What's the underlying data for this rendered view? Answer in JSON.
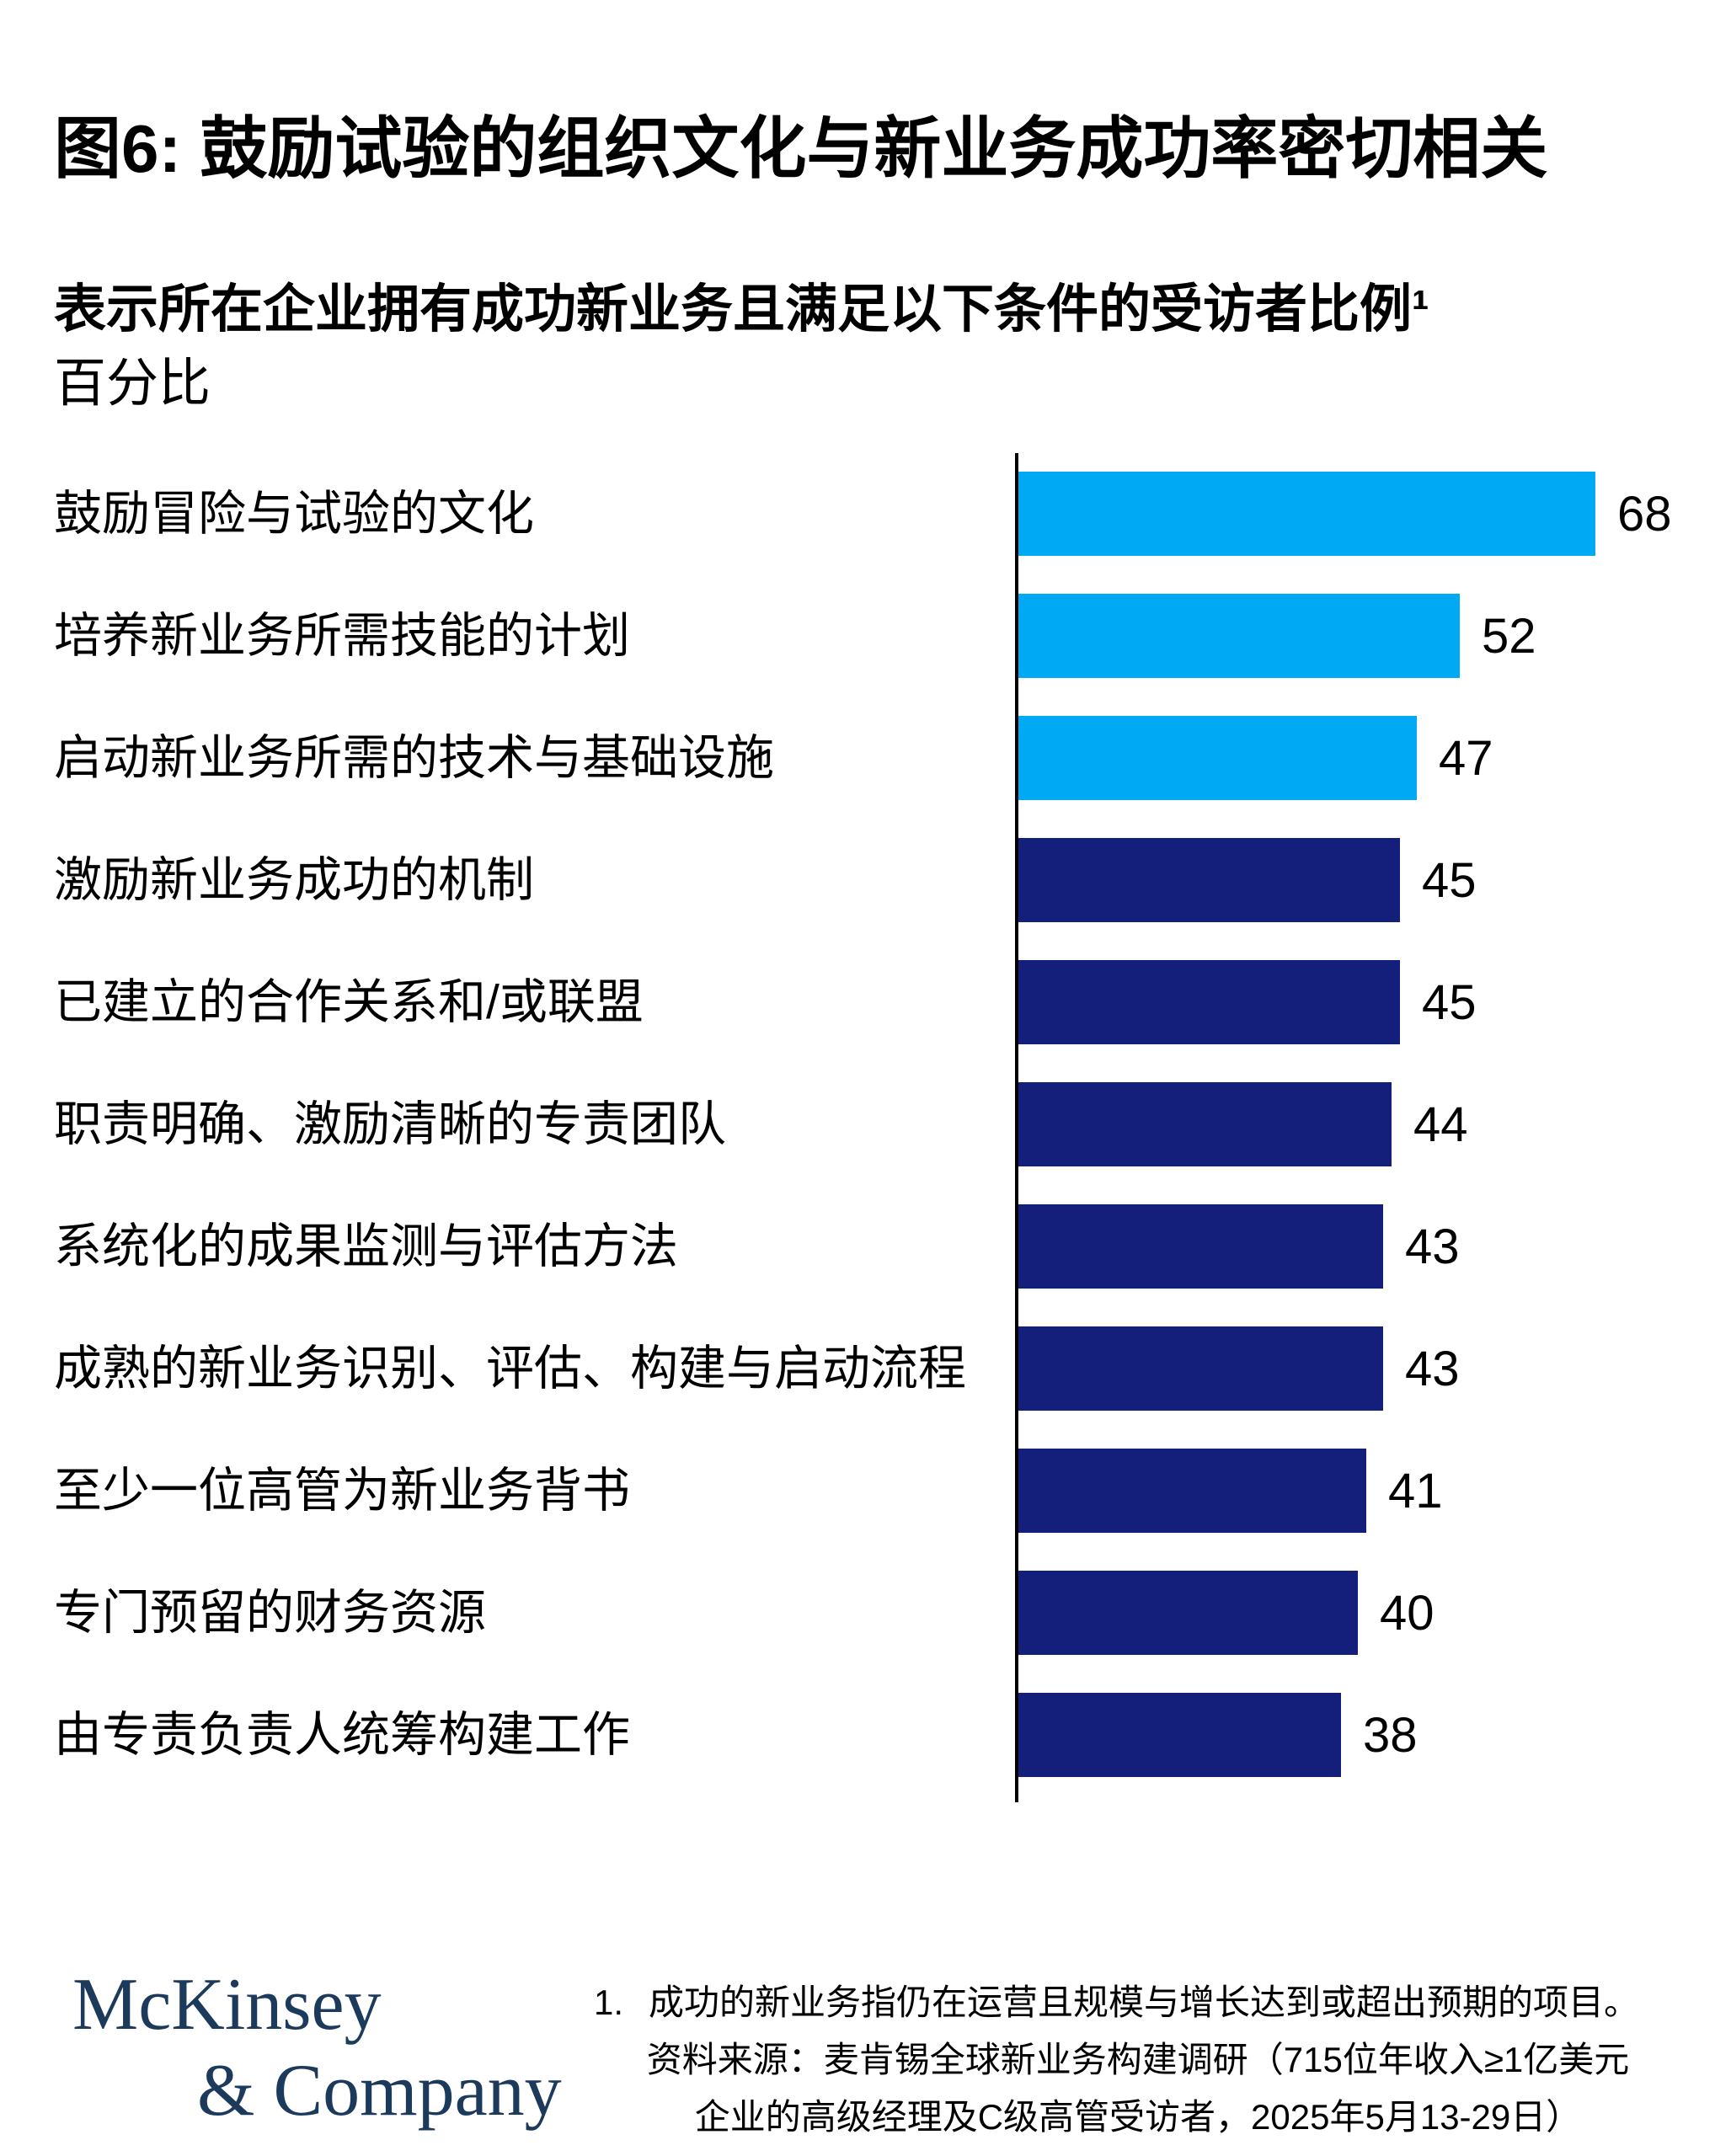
{
  "page": {
    "title": "图6: 鼓励试验的组织文化与新业务成功率密切相关",
    "subtitle": "表示所在企业拥有成功新业务且满足以下条件的受访者比例¹",
    "unit_label": "百分比"
  },
  "chart_data": {
    "type": "bar",
    "orientation": "horizontal",
    "value_unit": "percent",
    "xlim": [
      0,
      70
    ],
    "grid": false,
    "legend": "none",
    "categories": [
      "鼓励冒险与试验的文化",
      "培养新业务所需技能的计划",
      "启动新业务所需的技术与基础设施",
      "激励新业务成功的机制",
      "已建立的合作关系和/或联盟",
      "职责明确、激励清晰的专责团队",
      "系统化的成果监测与评估方法",
      "成熟的新业务识别、评估、构建与启动流程",
      "至少一位高管为新业务背书",
      "专门预留的财务资源",
      "由专责负责人统筹构建工作"
    ],
    "values": [
      68,
      52,
      47,
      45,
      45,
      44,
      43,
      43,
      41,
      40,
      38
    ],
    "bar_colors": [
      "#00A9F4",
      "#00A9F4",
      "#00A9F4",
      "#141F7B",
      "#141F7B",
      "#141F7B",
      "#141F7B",
      "#141F7B",
      "#141F7B",
      "#141F7B",
      "#141F7B"
    ],
    "highlight_color": "#00A9F4",
    "base_color": "#141F7B",
    "axis_color": "#000000"
  },
  "footer": {
    "logo": {
      "line1": "McKinsey",
      "line2": "& Company",
      "color": "#1C3A5C"
    },
    "footnote": {
      "number": "1.",
      "text": "成功的新业务指仍在运营且规模与增长达到或超出预期的项目。"
    },
    "source": {
      "line1": "资料来源：麦肯锡全球新业务构建调研（715位年收入≥1亿美元",
      "line2": "企业的高级经理及C级高管受访者，2025年5月13-29日）"
    }
  }
}
